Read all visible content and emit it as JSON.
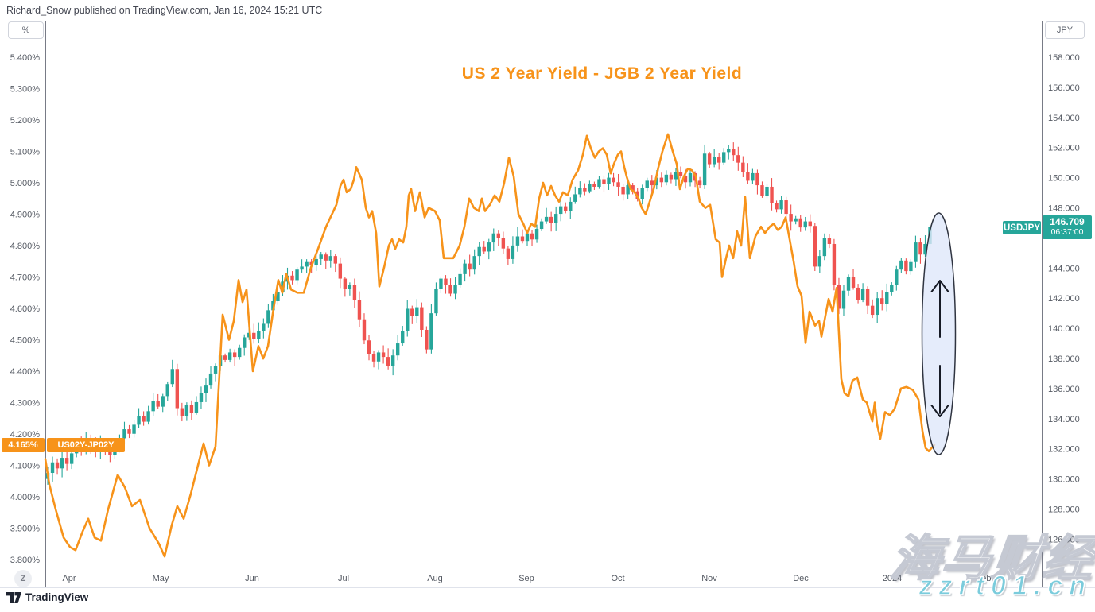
{
  "header": {
    "attribution": "Richard_Snow published on TradingView.com, Jan 16, 2024 15:21 UTC"
  },
  "title": "US 2 Year Yield - JGB 2 Year Yield",
  "left_axis": {
    "unit_button": "%",
    "ticks": [
      "5.400%",
      "5.300%",
      "5.200%",
      "5.100%",
      "5.000%",
      "4.900%",
      "4.800%",
      "4.700%",
      "4.600%",
      "4.500%",
      "4.400%",
      "4.300%",
      "4.200%",
      "4.100%",
      "4.000%",
      "3.900%",
      "3.800%"
    ],
    "badge_value": "4.165%"
  },
  "right_axis": {
    "unit_button": "JPY",
    "ticks": [
      "158.000",
      "156.000",
      "154.000",
      "152.000",
      "150.000",
      "148.000",
      "146.000",
      "144.000",
      "142.000",
      "140.000",
      "138.000",
      "136.000",
      "134.000",
      "132.000",
      "130.000",
      "128.000",
      "126.000"
    ],
    "price_badge": {
      "value": "146.709",
      "countdown": "06:37:00"
    }
  },
  "series_labels": {
    "spread": "US02Y-JP02Y",
    "candles": "USDJPY"
  },
  "time_axis": {
    "labels": [
      "Apr",
      "May",
      "Jun",
      "Jul",
      "Aug",
      "Sep",
      "Oct",
      "Nov",
      "Dec",
      "2024",
      "Feb"
    ],
    "zoom_badge": "Z"
  },
  "footer": {
    "logo_text": "TradingView"
  },
  "watermark": {
    "line1": "海马财经",
    "line2": "zzrt01.cn"
  },
  "colors": {
    "accent_orange": "#f7931a",
    "candle_up": "#26a69a",
    "candle_down": "#ef5350",
    "axis_line": "#787b86",
    "axis_text": "#555a63",
    "annotation_fill": "#dfe7fa",
    "annotation_stroke": "#2f3440",
    "watermark_teal": "#7bccdc"
  },
  "chart_data": {
    "type": "mixed",
    "title": "US 2 Year Yield - JGB 2 Year Yield",
    "left_axis_range": {
      "min": 3.8,
      "max": 5.4,
      "unit": "%"
    },
    "right_axis_range": {
      "min": 126.0,
      "max": 158.0,
      "unit": "JPY"
    },
    "grid": false,
    "series": [
      {
        "name": "US02Y-JP02Y",
        "type": "line",
        "axis": "left",
        "unit": "%",
        "color": "#f7931a",
        "last_value": 4.165,
        "points": [
          [
            57,
            4.12
          ],
          [
            62,
            4.04
          ],
          [
            70,
            3.96
          ],
          [
            80,
            3.87
          ],
          [
            88,
            3.84
          ],
          [
            95,
            3.83
          ],
          [
            104,
            3.89
          ],
          [
            111,
            3.93
          ],
          [
            119,
            3.87
          ],
          [
            127,
            3.86
          ],
          [
            136,
            3.96
          ],
          [
            148,
            4.07
          ],
          [
            157,
            4.03
          ],
          [
            166,
            3.97
          ],
          [
            176,
            3.99
          ],
          [
            188,
            3.9
          ],
          [
            200,
            3.85
          ],
          [
            207,
            3.81
          ],
          [
            216,
            3.91
          ],
          [
            223,
            3.97
          ],
          [
            231,
            3.93
          ],
          [
            240,
            4.01
          ],
          [
            249,
            4.1
          ],
          [
            256,
            4.17
          ],
          [
            263,
            4.1
          ],
          [
            271,
            4.16
          ],
          [
            280,
            4.58
          ],
          [
            288,
            4.5
          ],
          [
            294,
            4.56
          ],
          [
            300,
            4.69
          ],
          [
            305,
            4.62
          ],
          [
            310,
            4.66
          ],
          [
            318,
            4.4
          ],
          [
            325,
            4.48
          ],
          [
            331,
            4.44
          ],
          [
            337,
            4.48
          ],
          [
            344,
            4.6
          ],
          [
            350,
            4.69
          ],
          [
            355,
            4.65
          ],
          [
            360,
            4.71
          ],
          [
            366,
            4.66
          ],
          [
            374,
            4.65
          ],
          [
            382,
            4.65
          ],
          [
            391,
            4.73
          ],
          [
            400,
            4.79
          ],
          [
            410,
            4.86
          ],
          [
            423,
            4.93
          ],
          [
            428,
            4.99
          ],
          [
            432,
            5.01
          ],
          [
            436,
            4.97
          ],
          [
            441,
            4.98
          ],
          [
            445,
            5.01
          ],
          [
            448,
            5.05
          ],
          [
            455,
            5.01
          ],
          [
            460,
            4.92
          ],
          [
            464,
            4.89
          ],
          [
            468,
            4.91
          ],
          [
            473,
            4.84
          ],
          [
            477,
            4.67
          ],
          [
            483,
            4.73
          ],
          [
            489,
            4.8
          ],
          [
            493,
            4.82
          ],
          [
            497,
            4.79
          ],
          [
            502,
            4.82
          ],
          [
            507,
            4.81
          ],
          [
            511,
            4.86
          ],
          [
            514,
            4.96
          ],
          [
            517,
            4.98
          ],
          [
            522,
            4.91
          ],
          [
            528,
            4.97
          ],
          [
            534,
            4.89
          ],
          [
            539,
            4.92
          ],
          [
            547,
            4.91
          ],
          [
            553,
            4.88
          ],
          [
            558,
            4.76
          ],
          [
            570,
            4.76
          ],
          [
            578,
            4.8
          ],
          [
            584,
            4.86
          ],
          [
            590,
            4.95
          ],
          [
            596,
            4.92
          ],
          [
            602,
            4.91
          ],
          [
            606,
            4.95
          ],
          [
            610,
            4.91
          ],
          [
            616,
            4.93
          ],
          [
            622,
            4.96
          ],
          [
            628,
            4.94
          ],
          [
            634,
            5.0
          ],
          [
            640,
            5.08
          ],
          [
            646,
            5.02
          ],
          [
            652,
            4.9
          ],
          [
            658,
            4.87
          ],
          [
            663,
            4.84
          ],
          [
            668,
            4.87
          ],
          [
            673,
            4.86
          ],
          [
            678,
            4.95
          ],
          [
            683,
            5.0
          ],
          [
            688,
            4.96
          ],
          [
            693,
            4.99
          ],
          [
            698,
            4.96
          ],
          [
            703,
            4.94
          ],
          [
            708,
            4.97
          ],
          [
            714,
            4.96
          ],
          [
            720,
            5.01
          ],
          [
            727,
            5.04
          ],
          [
            733,
            5.09
          ],
          [
            738,
            5.15
          ],
          [
            743,
            5.11
          ],
          [
            748,
            5.08
          ],
          [
            753,
            5.1
          ],
          [
            758,
            5.11
          ],
          [
            763,
            5.09
          ],
          [
            768,
            5.03
          ],
          [
            772,
            5.06
          ],
          [
            777,
            5.09
          ],
          [
            781,
            5.1
          ],
          [
            785,
            5.05
          ],
          [
            788,
            5.02
          ],
          [
            793,
            4.98
          ],
          [
            798,
            4.97
          ],
          [
            803,
            4.95
          ],
          [
            807,
            4.92
          ],
          [
            812,
            4.9
          ],
          [
            817,
            4.94
          ],
          [
            822,
            4.98
          ],
          [
            828,
            5.05
          ],
          [
            833,
            5.1
          ],
          [
            840,
            5.155
          ],
          [
            846,
            5.1
          ],
          [
            851,
            5.06
          ],
          [
            855,
            4.98
          ],
          [
            860,
            5.02
          ],
          [
            865,
            5.045
          ],
          [
            870,
            5.04
          ],
          [
            875,
            5.02
          ],
          [
            880,
            4.94
          ],
          [
            887,
            4.92
          ],
          [
            893,
            4.93
          ],
          [
            900,
            4.82
          ],
          [
            905,
            4.81
          ],
          [
            908,
            4.7
          ],
          [
            913,
            4.76
          ],
          [
            917,
            4.8
          ],
          [
            922,
            4.76
          ],
          [
            927,
            4.845
          ],
          [
            932,
            4.8
          ],
          [
            937,
            4.955
          ],
          [
            943,
            4.76
          ],
          [
            950,
            4.83
          ],
          [
            957,
            4.86
          ],
          [
            962,
            4.84
          ],
          [
            968,
            4.86
          ],
          [
            973,
            4.87
          ],
          [
            978,
            4.85
          ],
          [
            983,
            4.86
          ],
          [
            988,
            4.89
          ],
          [
            993,
            4.82
          ],
          [
            998,
            4.75
          ],
          [
            1003,
            4.67
          ],
          [
            1008,
            4.64
          ],
          [
            1013,
            4.49
          ],
          [
            1018,
            4.59
          ],
          [
            1025,
            4.545
          ],
          [
            1030,
            4.56
          ],
          [
            1033,
            4.51
          ],
          [
            1042,
            4.63
          ],
          [
            1047,
            4.59
          ],
          [
            1052,
            4.665
          ],
          [
            1058,
            4.375
          ],
          [
            1062,
            4.33
          ],
          [
            1067,
            4.32
          ],
          [
            1072,
            4.37
          ],
          [
            1078,
            4.38
          ],
          [
            1085,
            4.31
          ],
          [
            1090,
            4.3
          ],
          [
            1097,
            4.24
          ],
          [
            1100,
            4.3
          ],
          [
            1103,
            4.23
          ],
          [
            1107,
            4.185
          ],
          [
            1113,
            4.27
          ],
          [
            1119,
            4.26
          ],
          [
            1125,
            4.28
          ],
          [
            1133,
            4.345
          ],
          [
            1140,
            4.35
          ],
          [
            1148,
            4.34
          ],
          [
            1155,
            4.31
          ],
          [
            1160,
            4.21
          ],
          [
            1164,
            4.155
          ],
          [
            1168,
            4.145
          ],
          [
            1175,
            4.165
          ]
        ]
      },
      {
        "name": "USDJPY",
        "type": "candlestick",
        "axis": "right",
        "unit": "JPY",
        "up_color": "#26a69a",
        "down_color": "#ef5350",
        "last_value": 146.709,
        "first_open": 130.0,
        "closes": [
          130.4,
          131.1,
          130.7,
          131.4,
          131.0,
          131.7,
          132.3,
          132.0,
          132.6,
          132.2,
          131.8,
          132.4,
          132.0,
          131.6,
          132.1,
          132.7,
          133.3,
          133.0,
          133.6,
          134.2,
          133.8,
          134.5,
          135.2,
          134.8,
          135.5,
          136.3,
          137.3,
          134.7,
          134.2,
          134.9,
          134.4,
          135.1,
          135.7,
          136.2,
          137.0,
          137.5,
          138.2,
          137.9,
          138.4,
          138.1,
          138.7,
          139.4,
          139.7,
          139.3,
          139.8,
          140.3,
          141.2,
          141.8,
          142.4,
          143.1,
          143.5,
          143.2,
          143.9,
          144.1,
          144.4,
          144.2,
          144.6,
          144.9,
          144.5,
          144.8,
          144.3,
          143.3,
          142.6,
          142.9,
          141.9,
          140.6,
          139.2,
          138.3,
          137.8,
          138.4,
          138.1,
          137.5,
          138.2,
          139.0,
          139.8,
          141.3,
          140.8,
          141.4,
          139.9,
          138.6,
          141.0,
          142.6,
          143.3,
          142.9,
          142.3,
          142.9,
          143.6,
          144.3,
          143.9,
          144.8,
          145.4,
          145.1,
          145.7,
          146.3,
          146.0,
          145.3,
          144.6,
          145.5,
          146.1,
          145.8,
          146.3,
          145.9,
          146.6,
          147.1,
          147.4,
          147.0,
          147.6,
          148.1,
          147.8,
          148.4,
          148.9,
          149.3,
          149.1,
          149.6,
          149.4,
          149.9,
          149.6,
          150.0,
          149.7,
          149.4,
          148.9,
          149.5,
          149.1,
          148.6,
          149.3,
          149.8,
          149.5,
          150.0,
          149.7,
          150.2,
          149.9,
          150.4,
          150.1,
          149.7,
          150.3,
          149.8,
          149.5,
          151.6,
          150.9,
          151.4,
          151.0,
          151.7,
          151.9,
          151.5,
          151.0,
          150.4,
          149.8,
          150.3,
          149.5,
          148.8,
          149.4,
          148.3,
          147.9,
          148.5,
          147.6,
          147.1,
          147.3,
          146.7,
          147.1,
          146.8,
          144.1,
          144.8,
          146.0,
          145.6,
          142.9,
          141.3,
          142.5,
          143.4,
          142.7,
          141.9,
          142.6,
          141.5,
          140.9,
          142.0,
          141.6,
          142.4,
          142.9,
          143.9,
          144.5,
          143.8,
          144.4,
          145.7,
          144.9,
          145.6,
          146.709
        ]
      }
    ],
    "annotation": {
      "shape": "ellipse",
      "meaning": "two-way risk highlight with up and down arrows"
    }
  }
}
